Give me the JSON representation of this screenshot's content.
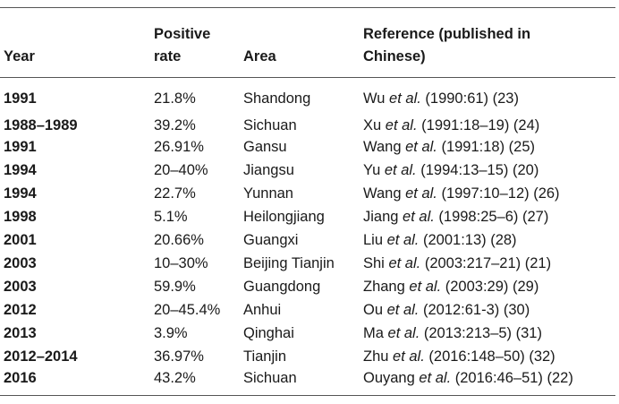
{
  "headers": {
    "year": "Year",
    "rate_line1": "Positive",
    "rate_line2": "rate",
    "area": "Area",
    "ref_line1": "Reference (published in",
    "ref_line2": "Chinese)"
  },
  "rows": [
    {
      "year": "1991",
      "rate": "21.8%",
      "area": "Shandong",
      "ref_author": "Wu",
      "ref_etal": "et al.",
      "ref_rest": " (1990:61) (23)"
    },
    {
      "year": "1988–1989",
      "rate": "39.2%",
      "area": "Sichuan",
      "ref_author": "Xu",
      "ref_etal": "et al.",
      "ref_rest": " (1991:18–19) (24)"
    },
    {
      "year": "1991",
      "rate": "26.91%",
      "area": "Gansu",
      "ref_author": "Wang",
      "ref_etal": "et al.",
      "ref_rest": " (1991:18) (25)"
    },
    {
      "year": "1994",
      "rate": "20–40%",
      "area": "Jiangsu",
      "ref_author": "Yu",
      "ref_etal": "et al.",
      "ref_rest": " (1994:13–15) (20)"
    },
    {
      "year": "1994",
      "rate": "22.7%",
      "area": "Yunnan",
      "ref_author": "Wang",
      "ref_etal": "et al.",
      "ref_rest": " (1997:10–12) (26)"
    },
    {
      "year": "1998",
      "rate": "5.1%",
      "area": "Heilongjiang",
      "ref_author": "Jiang",
      "ref_etal": "et al.",
      "ref_rest": " (1998:25–6) (27)"
    },
    {
      "year": "2001",
      "rate": "20.66%",
      "area": "Guangxi",
      "ref_author": "Liu",
      "ref_etal": "et al.",
      "ref_rest": " (2001:13) (28)"
    },
    {
      "year": "2003",
      "rate": "10–30%",
      "area": "Beijing Tianjin",
      "ref_author": "Shi",
      "ref_etal": "et al.",
      "ref_rest": " (2003:217–21) (21)"
    },
    {
      "year": "2003",
      "rate": "59.9%",
      "area": "Guangdong",
      "ref_author": "Zhang",
      "ref_etal": "et al.",
      "ref_rest": " (2003:29) (29)"
    },
    {
      "year": "2012",
      "rate": "20–45.4%",
      "area": "Anhui",
      "ref_author": "Ou",
      "ref_etal": "et al.",
      "ref_rest": " (2012:61-3) (30)"
    },
    {
      "year": "2013",
      "rate": "3.9%",
      "area": "Qinghai",
      "ref_author": "Ma",
      "ref_etal": "et al.",
      "ref_rest": " (2013:213–5) (31)"
    },
    {
      "year": "2012–2014",
      "rate": "36.97%",
      "area": "Tianjin",
      "ref_author": "Zhu",
      "ref_etal": "et al.",
      "ref_rest": " (2016:148–50) (32)"
    },
    {
      "year": "2016",
      "rate": "43.2%",
      "area": "Sichuan",
      "ref_author": "Ouyang",
      "ref_etal": "et al.",
      "ref_rest": " (2016:46–51) (22)"
    }
  ]
}
